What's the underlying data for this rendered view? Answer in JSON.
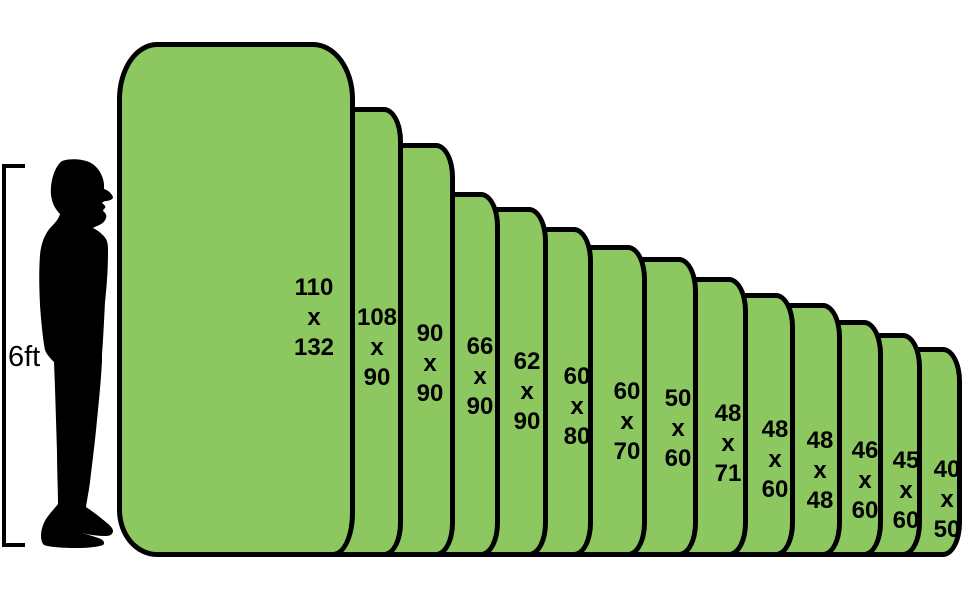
{
  "reference": {
    "height_label": "6ft"
  },
  "separator": "x",
  "sizes": [
    {
      "w": "110",
      "h": "132"
    },
    {
      "w": "108",
      "h": "90"
    },
    {
      "w": "90",
      "h": "90"
    },
    {
      "w": "66",
      "h": "90"
    },
    {
      "w": "62",
      "h": "90"
    },
    {
      "w": "60",
      "h": "80"
    },
    {
      "w": "60",
      "h": "70"
    },
    {
      "w": "50",
      "h": "60"
    },
    {
      "w": "48",
      "h": "71"
    },
    {
      "w": "48",
      "h": "60"
    },
    {
      "w": "48",
      "h": "48"
    },
    {
      "w": "46",
      "h": "60"
    },
    {
      "w": "45",
      "h": "60"
    },
    {
      "w": "40",
      "h": "50"
    }
  ],
  "colors": {
    "rectangle_fill": "#8dc75f",
    "rectangle_border": "#000000",
    "silhouette": "#000000",
    "background": "#ffffff"
  }
}
